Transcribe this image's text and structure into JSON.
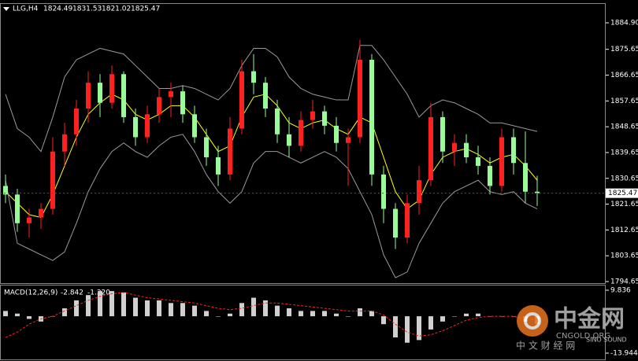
{
  "chart_data": {
    "type": "candlestick",
    "title": "LLG,H4",
    "header_values": [
      1824.49,
      1831.53,
      1821.02,
      1825.47
    ],
    "ylim": [
      1794.1,
      1890.66
    ],
    "yticks": [
      {
        "value": 1884.9,
        "label": "1884.90"
      },
      1875.65,
      1866.65,
      1857.65,
      1848.65,
      1839.65,
      1830.65,
      1821.65,
      1812.65,
      1803.65,
      1794.65
    ],
    "grid": false,
    "last_price": 1825.47,
    "up_color": "#ff2020",
    "down_color": "#98fb98",
    "open": [
      1828,
      1825,
      1815,
      1817,
      1820,
      1840,
      1846,
      1855,
      1864,
      1857,
      1867,
      1852,
      1845,
      1853,
      1859,
      1861,
      1853,
      1845,
      1838,
      1832,
      1848,
      1868,
      1864,
      1855,
      1846,
      1842,
      1851,
      1854,
      1849,
      1843,
      1845,
      1872,
      1832,
      1820,
      1810,
      1822,
      1830,
      1852,
      1840,
      1843,
      1838,
      1835,
      1828,
      1845,
      1836,
      1826
    ],
    "high": [
      1832,
      1827,
      1820,
      1822,
      1845,
      1850,
      1858,
      1868,
      1867,
      1870,
      1868,
      1855,
      1856,
      1862,
      1864,
      1863,
      1856,
      1848,
      1842,
      1852,
      1872,
      1874,
      1866,
      1858,
      1852,
      1854,
      1858,
      1856,
      1852,
      1848,
      1879,
      1874,
      1835,
      1822,
      1825,
      1835,
      1857,
      1854,
      1846,
      1846,
      1842,
      1838,
      1848,
      1848,
      1847,
      1831.53
    ],
    "low": [
      1822,
      1812,
      1810,
      1813,
      1818,
      1835,
      1842,
      1850,
      1852,
      1855,
      1850,
      1842,
      1843,
      1850,
      1852,
      1850,
      1843,
      1835,
      1828,
      1830,
      1846,
      1860,
      1852,
      1843,
      1838,
      1840,
      1848,
      1846,
      1840,
      1828,
      1843,
      1828,
      1815,
      1806,
      1808,
      1818,
      1828,
      1836,
      1835,
      1836,
      1832,
      1825,
      1826,
      1832,
      1822,
      1821.02
    ],
    "close": [
      1825,
      1815,
      1817,
      1820,
      1840,
      1846,
      1855,
      1864,
      1857,
      1867,
      1852,
      1845,
      1853,
      1859,
      1861,
      1853,
      1845,
      1838,
      1832,
      1848,
      1868,
      1864,
      1855,
      1846,
      1842,
      1851,
      1854,
      1849,
      1843,
      1845,
      1872,
      1832,
      1820,
      1810,
      1822,
      1830,
      1852,
      1840,
      1843,
      1838,
      1835,
      1828,
      1845,
      1836,
      1826,
      1825.47
    ],
    "lines": [
      {
        "color": "#ffff00",
        "values": [
          1826,
          1822,
          1818,
          1817,
          1825,
          1835,
          1845,
          1853,
          1857,
          1860,
          1858,
          1853,
          1851,
          1853,
          1856,
          1856,
          1852,
          1846,
          1840,
          1842,
          1852,
          1859,
          1860,
          1856,
          1850,
          1848,
          1850,
          1851,
          1848,
          1846,
          1852,
          1850,
          1838,
          1826,
          1820,
          1823,
          1832,
          1838,
          1840,
          1841,
          1839,
          1836,
          1838,
          1839,
          1835,
          1830
        ]
      },
      {
        "color": "#9a9a9a",
        "values": [
          1860,
          1848,
          1845,
          1840,
          1852,
          1866,
          1872,
          1874,
          1876,
          1875,
          1874,
          1870,
          1866,
          1862,
          1862,
          1863,
          1862,
          1860,
          1858,
          1862,
          1870,
          1876,
          1876,
          1873,
          1866,
          1862,
          1860,
          1859,
          1858,
          1858,
          1877,
          1877,
          1872,
          1866,
          1860,
          1852,
          1856,
          1858,
          1857,
          1855,
          1853,
          1850,
          1850,
          1849,
          1848,
          1847
        ]
      },
      {
        "color": "#9a9a9a",
        "values": [
          1830,
          1808,
          1806,
          1804,
          1802,
          1805,
          1815,
          1826,
          1834,
          1840,
          1843,
          1840,
          1838,
          1842,
          1845,
          1846,
          1840,
          1832,
          1826,
          1822,
          1826,
          1836,
          1840,
          1840,
          1838,
          1836,
          1838,
          1840,
          1838,
          1834,
          1826,
          1818,
          1804,
          1796,
          1798,
          1808,
          1815,
          1822,
          1826,
          1828,
          1830,
          1826,
          1825,
          1826,
          1822,
          1820
        ]
      }
    ],
    "macd": {
      "title": "MACD(12,26,9)",
      "header_values": [
        -2.842,
        {
          "value": -1.32,
          "label": "-1.320"
        }
      ],
      "ylim": [
        -16.32,
        11.92
      ],
      "yticks": [
        9.836,
        -13.944
      ],
      "hist_color": "#d0d0d0",
      "signal_color": "#ff2020",
      "histogram": [
        2,
        1,
        -1,
        -2,
        0,
        3,
        6,
        8,
        9.5,
        9.5,
        9,
        7,
        6,
        6,
        5,
        5,
        4,
        2,
        0,
        1,
        5,
        7,
        6,
        4,
        3,
        2,
        2,
        2,
        1,
        0,
        3,
        2,
        -3,
        -8,
        -10,
        -9,
        -5,
        -2,
        0,
        1,
        1,
        0,
        0,
        0,
        -2,
        -2.842
      ],
      "signal": [
        -8,
        -6,
        -3,
        -1,
        0,
        2,
        4,
        6,
        7.5,
        8.5,
        9,
        8,
        7,
        6.5,
        6,
        5.5,
        5,
        4,
        3,
        2.5,
        3,
        4,
        5,
        5,
        4.5,
        4,
        3.5,
        3,
        2.5,
        2,
        2,
        2,
        0.5,
        -3,
        -6,
        -7.5,
        -7,
        -5.5,
        -3.5,
        -1.5,
        -0.5,
        0,
        0,
        0,
        -1,
        -1.32
      ]
    },
    "watermark": {
      "brand": "中金网",
      "site": "CNGOLD.ORG",
      "sub": "SINO SOUND",
      "tagline": "中 文 财 经 网"
    }
  }
}
